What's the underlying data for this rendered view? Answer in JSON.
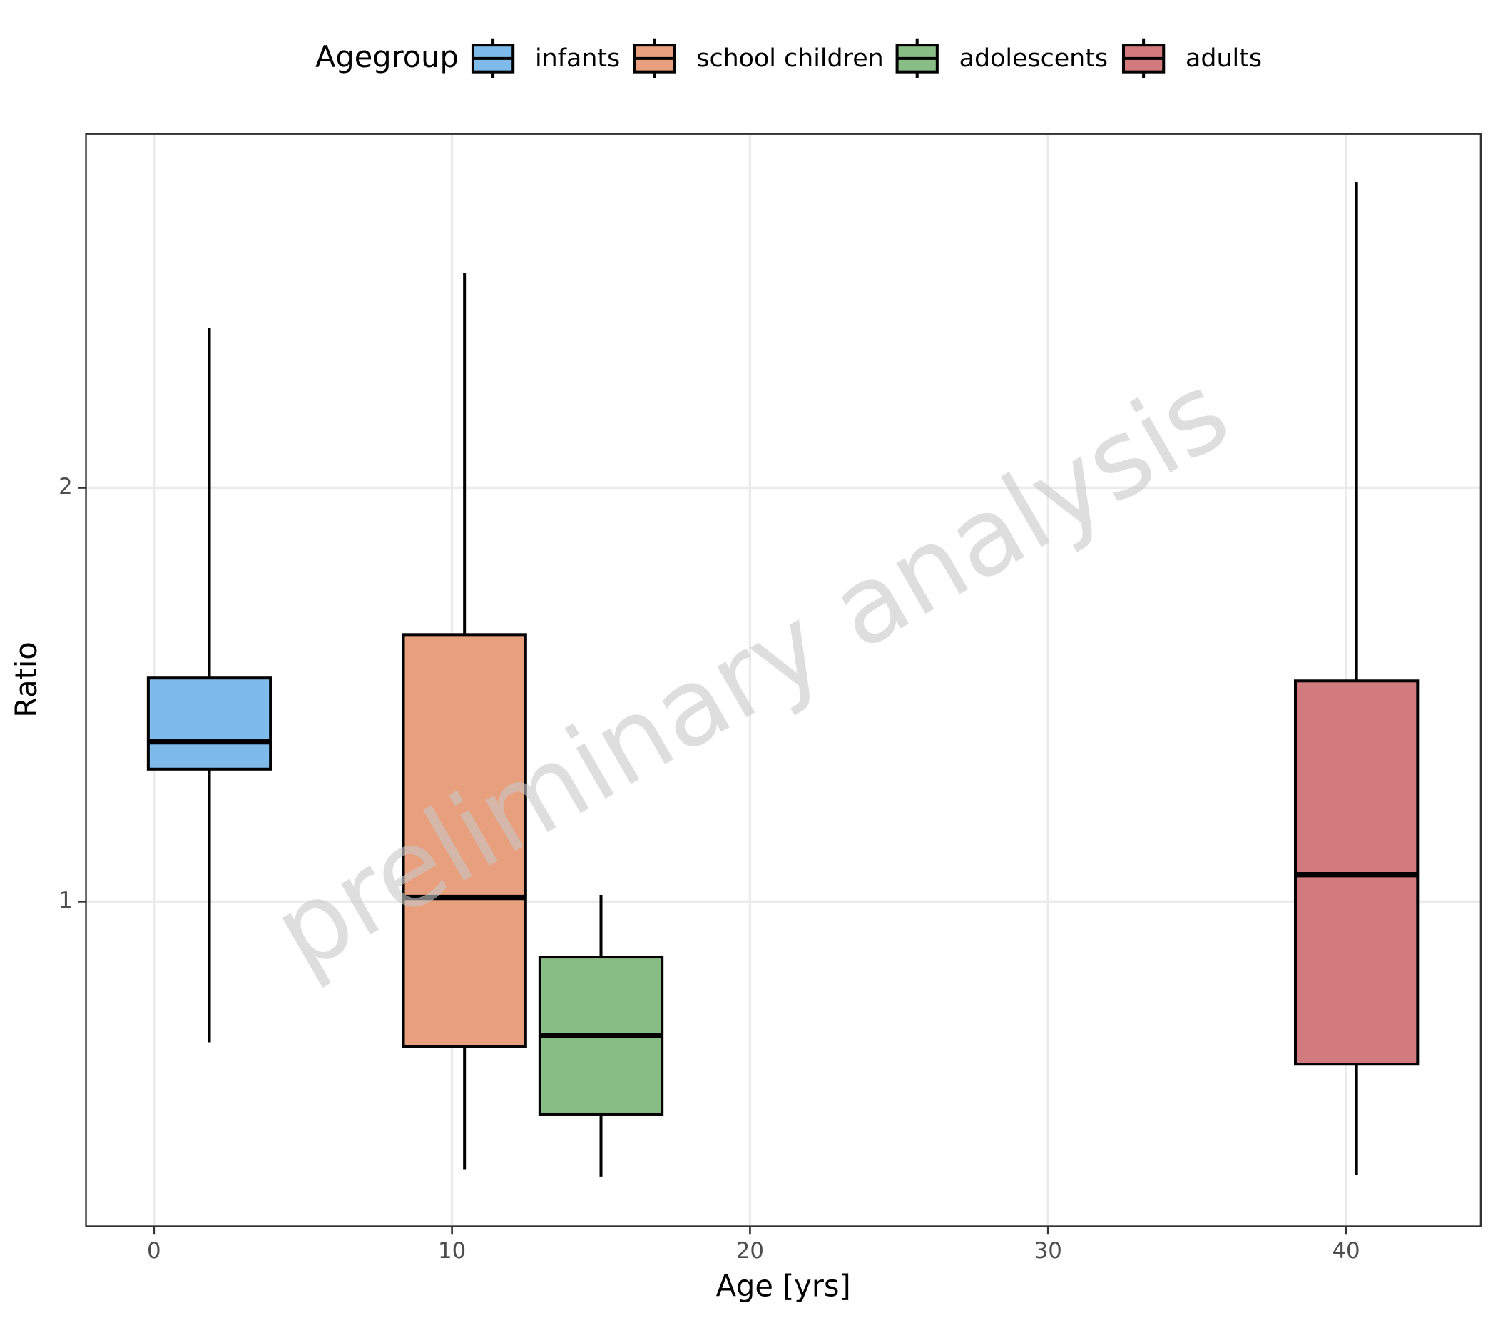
{
  "chart_data": {
    "type": "box",
    "x_label": "Age [yrs]",
    "y_label": "Ratio",
    "legend_title": "Agegroup",
    "legend_position": "top",
    "annotation": "preliminary analysis",
    "xlim": [
      -2.28,
      44.52
    ],
    "xticks": [
      0,
      10,
      20,
      30,
      40
    ],
    "ylim": [
      0.215,
      2.855
    ],
    "yticks": [
      1,
      2
    ],
    "grid": true,
    "series": [
      {
        "name": "infants",
        "color": "#7fbbea",
        "x": 1.86,
        "whislo": 0.66,
        "q1": 1.32,
        "med": 1.386,
        "q3": 1.54,
        "whishi": 2.386
      },
      {
        "name": "school children",
        "color": "#e89f7e",
        "x": 10.42,
        "whislo": 0.353,
        "q1": 0.65,
        "med": 1.01,
        "q3": 1.645,
        "whishi": 2.52
      },
      {
        "name": "adolescents",
        "color": "#89bd86",
        "x": 15.0,
        "whislo": 0.335,
        "q1": 0.485,
        "med": 0.677,
        "q3": 0.866,
        "whishi": 1.016
      },
      {
        "name": "adults",
        "color": "#d27b7e",
        "x": 40.35,
        "whislo": 0.34,
        "q1": 0.607,
        "med": 1.065,
        "q3": 1.533,
        "whishi": 2.739
      }
    ]
  }
}
